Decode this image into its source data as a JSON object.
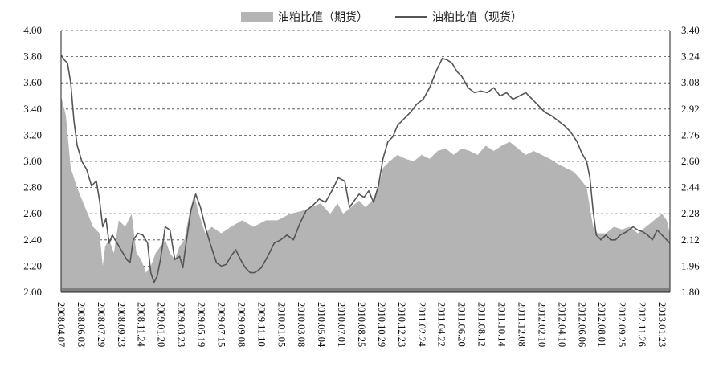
{
  "chart_data": {
    "type": "area+line",
    "legend_position": "top-center",
    "grid": "horizontal-dashed",
    "series": [
      {
        "name": "油粕比值（期货）",
        "axis": "left",
        "style": "area",
        "color": "#b4b4b4",
        "points": [
          [
            0,
            3.5
          ],
          [
            6,
            3.35
          ],
          [
            12,
            2.95
          ],
          [
            20,
            2.8
          ],
          [
            30,
            2.65
          ],
          [
            40,
            2.5
          ],
          [
            48,
            2.45
          ],
          [
            52,
            2.2
          ],
          [
            55,
            2.35
          ],
          [
            60,
            2.4
          ],
          [
            66,
            2.3
          ],
          [
            72,
            2.55
          ],
          [
            80,
            2.5
          ],
          [
            88,
            2.6
          ],
          [
            94,
            2.3
          ],
          [
            100,
            2.25
          ],
          [
            106,
            2.15
          ],
          [
            112,
            2.2
          ],
          [
            118,
            2.3
          ],
          [
            124,
            2.35
          ],
          [
            130,
            2.4
          ],
          [
            136,
            2.3
          ],
          [
            142,
            2.25
          ],
          [
            148,
            2.35
          ],
          [
            154,
            2.4
          ],
          [
            160,
            2.6
          ],
          [
            166,
            2.75
          ],
          [
            172,
            2.6
          ],
          [
            180,
            2.45
          ],
          [
            188,
            2.5
          ],
          [
            200,
            2.45
          ],
          [
            212,
            2.5
          ],
          [
            226,
            2.55
          ],
          [
            240,
            2.5
          ],
          [
            256,
            2.55
          ],
          [
            270,
            2.55
          ],
          [
            286,
            2.6
          ],
          [
            300,
            2.62
          ],
          [
            312,
            2.65
          ],
          [
            324,
            2.68
          ],
          [
            336,
            2.6
          ],
          [
            345,
            2.68
          ],
          [
            352,
            2.6
          ],
          [
            362,
            2.65
          ],
          [
            372,
            2.7
          ],
          [
            380,
            2.65
          ],
          [
            388,
            2.7
          ],
          [
            396,
            2.8
          ],
          [
            402,
            2.95
          ],
          [
            410,
            3.0
          ],
          [
            420,
            3.05
          ],
          [
            430,
            3.02
          ],
          [
            440,
            3.0
          ],
          [
            450,
            3.05
          ],
          [
            460,
            3.02
          ],
          [
            470,
            3.08
          ],
          [
            480,
            3.1
          ],
          [
            490,
            3.05
          ],
          [
            500,
            3.1
          ],
          [
            510,
            3.08
          ],
          [
            520,
            3.05
          ],
          [
            530,
            3.12
          ],
          [
            540,
            3.08
          ],
          [
            550,
            3.12
          ],
          [
            560,
            3.15
          ],
          [
            570,
            3.1
          ],
          [
            580,
            3.05
          ],
          [
            590,
            3.08
          ],
          [
            600,
            3.05
          ],
          [
            610,
            3.02
          ],
          [
            620,
            2.98
          ],
          [
            630,
            2.95
          ],
          [
            640,
            2.92
          ],
          [
            650,
            2.85
          ],
          [
            656,
            2.8
          ],
          [
            660,
            2.65
          ],
          [
            664,
            2.5
          ],
          [
            670,
            2.45
          ],
          [
            680,
            2.45
          ],
          [
            690,
            2.5
          ],
          [
            700,
            2.48
          ],
          [
            710,
            2.5
          ],
          [
            720,
            2.45
          ],
          [
            730,
            2.5
          ],
          [
            740,
            2.55
          ],
          [
            750,
            2.6
          ],
          [
            756,
            2.55
          ],
          [
            760,
            2.45
          ]
        ]
      },
      {
        "name": "油粕比值（现货）",
        "axis": "right",
        "style": "line",
        "color": "#555555",
        "points": [
          [
            0,
            3.25
          ],
          [
            4,
            3.22
          ],
          [
            8,
            3.2
          ],
          [
            12,
            3.08
          ],
          [
            16,
            2.85
          ],
          [
            20,
            2.7
          ],
          [
            26,
            2.6
          ],
          [
            32,
            2.55
          ],
          [
            38,
            2.45
          ],
          [
            44,
            2.48
          ],
          [
            48,
            2.36
          ],
          [
            52,
            2.2
          ],
          [
            56,
            2.25
          ],
          [
            60,
            2.1
          ],
          [
            64,
            2.15
          ],
          [
            70,
            2.1
          ],
          [
            76,
            2.05
          ],
          [
            82,
            2.0
          ],
          [
            86,
            1.98
          ],
          [
            90,
            2.12
          ],
          [
            96,
            2.16
          ],
          [
            102,
            2.15
          ],
          [
            108,
            2.1
          ],
          [
            112,
            1.92
          ],
          [
            116,
            1.86
          ],
          [
            120,
            1.9
          ],
          [
            124,
            2.0
          ],
          [
            130,
            2.2
          ],
          [
            136,
            2.18
          ],
          [
            142,
            2.0
          ],
          [
            148,
            2.02
          ],
          [
            152,
            1.95
          ],
          [
            156,
            2.1
          ],
          [
            162,
            2.3
          ],
          [
            168,
            2.4
          ],
          [
            174,
            2.32
          ],
          [
            180,
            2.2
          ],
          [
            186,
            2.1
          ],
          [
            194,
            1.98
          ],
          [
            200,
            1.96
          ],
          [
            206,
            1.97
          ],
          [
            212,
            2.02
          ],
          [
            218,
            2.06
          ],
          [
            224,
            2.0
          ],
          [
            230,
            1.95
          ],
          [
            236,
            1.92
          ],
          [
            242,
            1.92
          ],
          [
            250,
            1.95
          ],
          [
            258,
            2.02
          ],
          [
            266,
            2.1
          ],
          [
            274,
            2.12
          ],
          [
            282,
            2.15
          ],
          [
            290,
            2.12
          ],
          [
            298,
            2.22
          ],
          [
            306,
            2.3
          ],
          [
            314,
            2.33
          ],
          [
            322,
            2.37
          ],
          [
            330,
            2.35
          ],
          [
            338,
            2.42
          ],
          [
            346,
            2.5
          ],
          [
            354,
            2.48
          ],
          [
            360,
            2.32
          ],
          [
            366,
            2.36
          ],
          [
            372,
            2.4
          ],
          [
            378,
            2.38
          ],
          [
            384,
            2.42
          ],
          [
            390,
            2.35
          ],
          [
            396,
            2.45
          ],
          [
            402,
            2.62
          ],
          [
            408,
            2.72
          ],
          [
            414,
            2.75
          ],
          [
            420,
            2.82
          ],
          [
            428,
            2.86
          ],
          [
            436,
            2.9
          ],
          [
            444,
            2.95
          ],
          [
            452,
            2.98
          ],
          [
            460,
            3.05
          ],
          [
            468,
            3.15
          ],
          [
            476,
            3.23
          ],
          [
            482,
            3.22
          ],
          [
            488,
            3.2
          ],
          [
            494,
            3.15
          ],
          [
            500,
            3.12
          ],
          [
            508,
            3.05
          ],
          [
            516,
            3.02
          ],
          [
            524,
            3.03
          ],
          [
            532,
            3.02
          ],
          [
            540,
            3.05
          ],
          [
            548,
            3.0
          ],
          [
            556,
            3.02
          ],
          [
            564,
            2.98
          ],
          [
            572,
            3.0
          ],
          [
            580,
            3.02
          ],
          [
            588,
            2.98
          ],
          [
            596,
            2.94
          ],
          [
            604,
            2.9
          ],
          [
            612,
            2.88
          ],
          [
            620,
            2.85
          ],
          [
            628,
            2.82
          ],
          [
            636,
            2.78
          ],
          [
            644,
            2.72
          ],
          [
            650,
            2.65
          ],
          [
            656,
            2.6
          ],
          [
            660,
            2.5
          ],
          [
            664,
            2.3
          ],
          [
            668,
            2.15
          ],
          [
            674,
            2.12
          ],
          [
            680,
            2.15
          ],
          [
            686,
            2.12
          ],
          [
            692,
            2.12
          ],
          [
            698,
            2.15
          ],
          [
            706,
            2.17
          ],
          [
            714,
            2.2
          ],
          [
            720,
            2.18
          ],
          [
            726,
            2.17
          ],
          [
            732,
            2.15
          ],
          [
            738,
            2.12
          ],
          [
            744,
            2.18
          ],
          [
            750,
            2.15
          ],
          [
            756,
            2.12
          ],
          [
            760,
            2.1
          ]
        ]
      }
    ],
    "x_extent": [
      0,
      760
    ],
    "left_axis": {
      "ylim": [
        2.0,
        4.0
      ],
      "ticks": [
        "2.00",
        "2.20",
        "2.40",
        "2.60",
        "2.80",
        "3.00",
        "3.20",
        "3.40",
        "3.60",
        "3.80",
        "4.00"
      ]
    },
    "right_axis": {
      "ylim": [
        1.8,
        3.4
      ],
      "ticks": [
        "1.80",
        "1.96",
        "2.12",
        "2.28",
        "2.44",
        "2.60",
        "2.76",
        "2.92",
        "3.08",
        "3.24",
        "3.40"
      ]
    },
    "x_tick_labels": [
      "2008.04.07",
      "2008.06.03",
      "2008.07.29",
      "2008.09.23",
      "2008.11.24",
      "2009.01.20",
      "2009.03.23",
      "2009.05.19",
      "2009.07.15",
      "2009.09.08",
      "2009.11.10",
      "2010.01.05",
      "2010.03.08",
      "2010.05.04",
      "2010.07.01",
      "2010.08.25",
      "2010.10.29",
      "2010.12.23",
      "2011.02.24",
      "2011.04.22",
      "2011.06.20",
      "2011.08.12",
      "2011.10.14",
      "2011.12.08",
      "2012.02.10",
      "2012.04.10",
      "2012.06.06",
      "2012.08.01",
      "2012.09.25",
      "2012.11.26",
      "2013.01.23"
    ]
  }
}
